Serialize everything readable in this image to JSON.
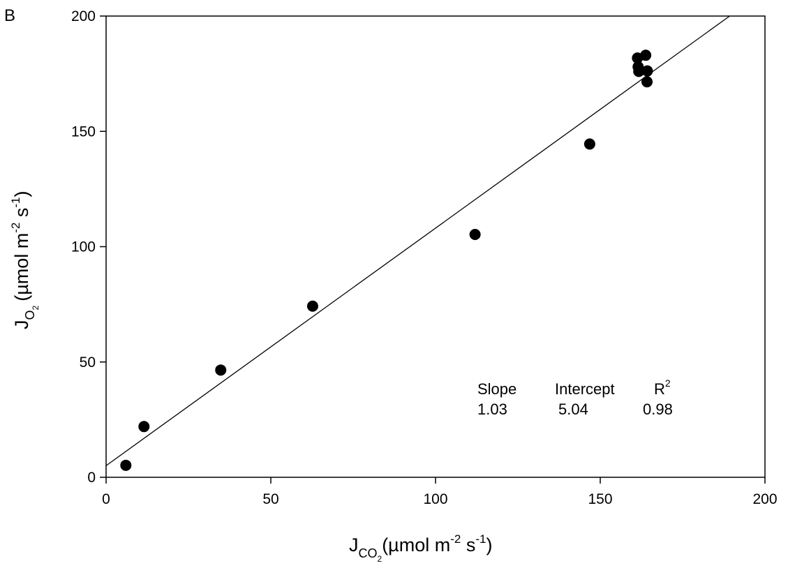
{
  "panel_label": "B",
  "chart_data": {
    "type": "scatter",
    "xlabel": {
      "main": "J",
      "sub": "CO",
      "sub2": "2",
      "unit_pre": "(µmol m",
      "unit_exp1": "-2",
      "unit_mid": " s",
      "unit_exp2": "-1",
      "unit_post": ")"
    },
    "ylabel": {
      "main": "J",
      "sub": "O",
      "sub2": "2",
      "unit_pre": "(µmol m",
      "unit_exp1": "-2",
      "unit_mid": " s",
      "unit_exp2": "-1",
      "unit_post": ")"
    },
    "xlim": [
      0,
      200
    ],
    "ylim": [
      0,
      200
    ],
    "xticks": [
      "0",
      "50",
      "100",
      "150",
      "200"
    ],
    "yticks": [
      "0",
      "50",
      "100",
      "150",
      "200"
    ],
    "grid": false,
    "points": [
      {
        "x": 6.0,
        "y": 5.2
      },
      {
        "x": 11.5,
        "y": 22.0
      },
      {
        "x": 34.8,
        "y": 46.5
      },
      {
        "x": 62.7,
        "y": 74.2
      },
      {
        "x": 112.0,
        "y": 105.3
      },
      {
        "x": 146.8,
        "y": 144.5
      },
      {
        "x": 161.3,
        "y": 181.8
      },
      {
        "x": 161.5,
        "y": 178.0
      },
      {
        "x": 161.7,
        "y": 176.0
      },
      {
        "x": 163.8,
        "y": 183.0
      },
      {
        "x": 164.3,
        "y": 176.2
      },
      {
        "x": 164.2,
        "y": 171.5
      }
    ],
    "fit": {
      "slope": 1.03,
      "intercept": 5.04,
      "r2": 0.98
    },
    "stats": {
      "slope_label": "Slope",
      "intercept_label": "Intercept",
      "r2_label": "R",
      "r2_exp": "2",
      "slope_value": "1.03",
      "intercept_value": "5.04",
      "r2_value": "0.98"
    }
  }
}
